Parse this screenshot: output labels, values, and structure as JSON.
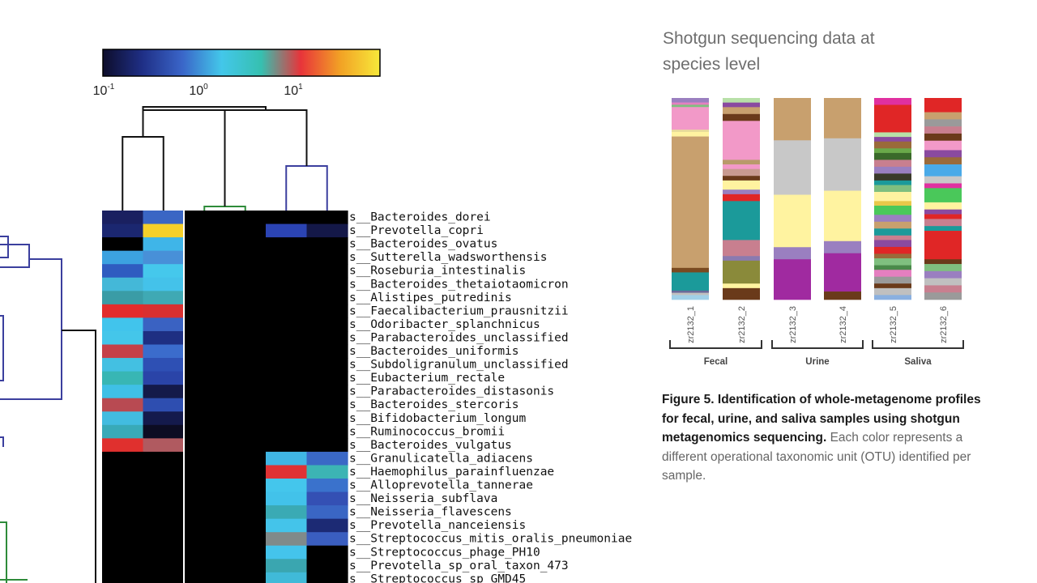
{
  "chart_data": [
    {
      "type": "heatmap",
      "colorbar": {
        "scale": "log",
        "colors": [
          "#0d0d2b",
          "#1f2f86",
          "#3a65c8",
          "#43c7ea",
          "#36c0b0",
          "#e8343a",
          "#f2a225",
          "#f7e93a"
        ],
        "ticks": [
          {
            "base": "10",
            "exp": "-1"
          },
          {
            "base": "10",
            "exp": "0"
          },
          {
            "base": "10",
            "exp": "1"
          }
        ]
      },
      "samples": 6,
      "rows": [
        {
          "label": "s__Bacteroides_dorei",
          "cells": [
            "#1a2060",
            "#3a66c4",
            "#000000",
            "#000000",
            "#000000",
            "#000000"
          ]
        },
        {
          "label": "s__Prevotella_copri",
          "cells": [
            "#1b2770",
            "#f5d02a",
            "#000000",
            "#000000",
            "#2b44b4",
            "#141848"
          ]
        },
        {
          "label": "s__Bacteroides_ovatus",
          "cells": [
            "#000000",
            "#3fb5e8",
            "#000000",
            "#000000",
            "#000000",
            "#000000"
          ]
        },
        {
          "label": "s__Sutterella_wadsworthensis",
          "cells": [
            "#3ca2e0",
            "#4890d8",
            "#000000",
            "#000000",
            "#000000",
            "#000000"
          ]
        },
        {
          "label": "s__Roseburia_intestinalis",
          "cells": [
            "#2f5cc0",
            "#45c8ec",
            "#000000",
            "#000000",
            "#000000",
            "#000000"
          ]
        },
        {
          "label": "s__Bacteroides_thetaiotaomicron",
          "cells": [
            "#44b8d8",
            "#44c2ea",
            "#000000",
            "#000000",
            "#000000",
            "#000000"
          ]
        },
        {
          "label": "s__Alistipes_putredinis",
          "cells": [
            "#3a9ca6",
            "#3fa9b4",
            "#000000",
            "#000000",
            "#000000",
            "#000000"
          ]
        },
        {
          "label": "s__Faecalibacterium_prausnitzii",
          "cells": [
            "#e22c2c",
            "#d93030",
            "#000000",
            "#000000",
            "#000000",
            "#000000"
          ]
        },
        {
          "label": "s__Odoribacter_splanchnicus",
          "cells": [
            "#41c4ec",
            "#3a62c2",
            "#000000",
            "#000000",
            "#000000",
            "#000000"
          ]
        },
        {
          "label": "s__Parabacteroides_unclassified",
          "cells": [
            "#44c6ea",
            "#1e2f82",
            "#000000",
            "#000000",
            "#000000",
            "#000000"
          ]
        },
        {
          "label": "s__Bacteroides_uniformis",
          "cells": [
            "#c54048",
            "#3b6ccc",
            "#000000",
            "#000000",
            "#000000",
            "#000000"
          ]
        },
        {
          "label": "s__Subdoligranulum_unclassified",
          "cells": [
            "#43c0e2",
            "#2e50b4",
            "#000000",
            "#000000",
            "#000000",
            "#000000"
          ]
        },
        {
          "label": "s__Eubacterium_rectale",
          "cells": [
            "#38b6b4",
            "#2a44a8",
            "#000000",
            "#000000",
            "#000000",
            "#000000"
          ]
        },
        {
          "label": "s__Parabacteroides_distasonis",
          "cells": [
            "#3fc0e6",
            "#141a4a",
            "#000000",
            "#000000",
            "#000000",
            "#000000"
          ]
        },
        {
          "label": "s__Bacteroides_stercoris",
          "cells": [
            "#b84a52",
            "#2e4eb0",
            "#000000",
            "#000000",
            "#000000",
            "#000000"
          ]
        },
        {
          "label": "s__Bifidobacterium_longum",
          "cells": [
            "#42bce0",
            "#141a4c",
            "#000000",
            "#000000",
            "#000000",
            "#000000"
          ]
        },
        {
          "label": "s__Ruminococcus_bromii",
          "cells": [
            "#38aab8",
            "#0c0c22",
            "#000000",
            "#000000",
            "#000000",
            "#000000"
          ]
        },
        {
          "label": "s__Bacteroides_vulgatus",
          "cells": [
            "#e0302e",
            "#b05a60",
            "#000000",
            "#000000",
            "#000000",
            "#000000"
          ]
        },
        {
          "label": "s__Granulicatella_adiacens",
          "cells": [
            "#000000",
            "#000000",
            "#000000",
            "#000000",
            "#40b6e4",
            "#3a68c6"
          ]
        },
        {
          "label": "s__Haemophilus_parainfluenzae",
          "cells": [
            "#000000",
            "#000000",
            "#000000",
            "#000000",
            "#e03234",
            "#3cb4b4"
          ]
        },
        {
          "label": "s__Alloprevotella_tannerae",
          "cells": [
            "#000000",
            "#000000",
            "#000000",
            "#000000",
            "#44c6ec",
            "#3a72cc"
          ]
        },
        {
          "label": "s__Neisseria_subflava",
          "cells": [
            "#000000",
            "#000000",
            "#000000",
            "#000000",
            "#42c2ea",
            "#3450b4"
          ]
        },
        {
          "label": "s__Neisseria_flavescens",
          "cells": [
            "#000000",
            "#000000",
            "#000000",
            "#000000",
            "#3aaab4",
            "#3a66c4"
          ]
        },
        {
          "label": "s__Prevotella_nanceiensis",
          "cells": [
            "#000000",
            "#000000",
            "#000000",
            "#000000",
            "#44c4ea",
            "#1c2a74"
          ]
        },
        {
          "label": "s__Streptococcus_mitis_oralis_pneumoniae",
          "cells": [
            "#000000",
            "#000000",
            "#000000",
            "#000000",
            "#808a8a",
            "#3a5ec0"
          ]
        },
        {
          "label": "s__Streptococcus_phage_PH10",
          "cells": [
            "#000000",
            "#000000",
            "#000000",
            "#000000",
            "#44c4ec",
            "#000000"
          ]
        },
        {
          "label": "s__Prevotella_sp_oral_taxon_473",
          "cells": [
            "#000000",
            "#000000",
            "#000000",
            "#000000",
            "#3aa6b0",
            "#000000"
          ]
        },
        {
          "label": "s__Streptococcus_sp_GMD45",
          "cells": [
            "#000000",
            "#000000",
            "#000000",
            "#000000",
            "#40bad8",
            "#000000"
          ]
        }
      ]
    },
    {
      "type": "bar",
      "stacked": true,
      "title_lines": [
        "Shotgun sequencing data at",
        "species level"
      ],
      "categories": [
        "zr2132_1",
        "zr2132_2",
        "zr2132_3",
        "zr2132_4",
        "zr2132_5",
        "zr2132_6"
      ],
      "groups": [
        {
          "name": "Fecal",
          "members": [
            0,
            1
          ]
        },
        {
          "name": "Urine",
          "members": [
            2,
            3
          ]
        },
        {
          "name": "Saliva",
          "members": [
            4,
            5
          ]
        }
      ],
      "stacks": [
        [
          [
            "#9a7fc0",
            2
          ],
          [
            "#e57fc0",
            1
          ],
          [
            "#7fbf7f",
            1
          ],
          [
            "#f299c8",
            10
          ],
          [
            "#e8dc9a",
            1
          ],
          [
            "#fff3a0",
            2
          ],
          [
            "#c8a06e",
            58
          ],
          [
            "#7a4a20",
            2
          ],
          [
            "#1b9a9a",
            8
          ],
          [
            "#6a6a9a",
            1
          ],
          [
            "#c0c0c0",
            1
          ],
          [
            "#a0d0e8",
            2
          ]
        ],
        [
          [
            "#b8e0a8",
            2
          ],
          [
            "#8a4aa0",
            2
          ],
          [
            "#c8a06e",
            3
          ],
          [
            "#6a3a1a",
            3
          ],
          [
            "#f299c8",
            17
          ],
          [
            "#b89a6a",
            2
          ],
          [
            "#f299c8",
            2
          ],
          [
            "#c89a90",
            3
          ],
          [
            "#6a3a1a",
            2
          ],
          [
            "#fff3a0",
            4
          ],
          [
            "#9a7fc0",
            2
          ],
          [
            "#e02626",
            3
          ],
          [
            "#1b9a9a",
            17
          ],
          [
            "#c87f8f",
            7
          ],
          [
            "#8a7ab0",
            2
          ],
          [
            "#8a8a3a",
            10
          ],
          [
            "#fff3a0",
            2
          ],
          [
            "#6a3a1a",
            5
          ]
        ],
        [
          [
            "#c8a06e",
            21
          ],
          [
            "#c8c8c8",
            27
          ],
          [
            "#fff3a0",
            26
          ],
          [
            "#9a7fc0",
            6
          ],
          [
            "#a02aa0",
            20
          ]
        ],
        [
          [
            "#c8a06e",
            20
          ],
          [
            "#c8c8c8",
            26
          ],
          [
            "#fff3a0",
            25
          ],
          [
            "#9a7fc0",
            6
          ],
          [
            "#a02aa0",
            19
          ],
          [
            "#6a3a1a",
            4
          ]
        ],
        [
          [
            "#e030a0",
            3
          ],
          [
            "#e02626",
            12
          ],
          [
            "#b8e0a8",
            2
          ],
          [
            "#8a4aa0",
            2
          ],
          [
            "#9a6a3a",
            3
          ],
          [
            "#6aaa4a",
            2
          ],
          [
            "#3a6a2a",
            3
          ],
          [
            "#c87f8f",
            3
          ],
          [
            "#9a7fc0",
            3
          ],
          [
            "#3a3a2a",
            3
          ],
          [
            "#1b9a9a",
            2
          ],
          [
            "#7fbf7f",
            3
          ],
          [
            "#fff3a0",
            4
          ],
          [
            "#e8c84a",
            2
          ],
          [
            "#4ac85a",
            4
          ],
          [
            "#9a7fc0",
            3
          ],
          [
            "#c8a06e",
            3
          ],
          [
            "#1b9a9a",
            3
          ],
          [
            "#c87f8f",
            2
          ],
          [
            "#8a4aa0",
            3
          ],
          [
            "#e02626",
            3
          ],
          [
            "#9a6a3a",
            2
          ],
          [
            "#7fbf7f",
            3
          ],
          [
            "#4a8a4a",
            2
          ],
          [
            "#e57fc0",
            3
          ],
          [
            "#9a9a9a",
            3
          ],
          [
            "#6a3a1a",
            2
          ],
          [
            "#c0c0c0",
            3
          ],
          [
            "#8ab0e0",
            2
          ]
        ],
        [
          [
            "#e02626",
            6
          ],
          [
            "#c8a06e",
            3
          ],
          [
            "#9a9a9a",
            3
          ],
          [
            "#c87f8f",
            3
          ],
          [
            "#6a3a1a",
            3
          ],
          [
            "#f299c8",
            4
          ],
          [
            "#8a4aa0",
            3
          ],
          [
            "#9a6a3a",
            3
          ],
          [
            "#4aaae8",
            5
          ],
          [
            "#c8c8c8",
            3
          ],
          [
            "#e030a0",
            2
          ],
          [
            "#4ac85a",
            6
          ],
          [
            "#fff3a0",
            3
          ],
          [
            "#8a4aa0",
            2
          ],
          [
            "#e02626",
            2
          ],
          [
            "#c87f8f",
            3
          ],
          [
            "#1b9a9a",
            2
          ],
          [
            "#e02626",
            12
          ],
          [
            "#6a3a1a",
            2
          ],
          [
            "#7fbf7f",
            3
          ],
          [
            "#9a7fc0",
            3
          ],
          [
            "#c0c0c0",
            3
          ],
          [
            "#c87f8f",
            3
          ],
          [
            "#9a9a9a",
            3
          ]
        ]
      ]
    }
  ],
  "figure": {
    "title_line1": "Shotgun sequencing data at",
    "title_line2": "species level",
    "caption_bold": "Figure 5. Identification of whole-metagenome profiles for fecal, urine, and saliva samples using shotgun metagenomics sequencing.",
    "caption_text": "Each color represents a different operational taxonomic unit (OTU) identified per sample."
  }
}
